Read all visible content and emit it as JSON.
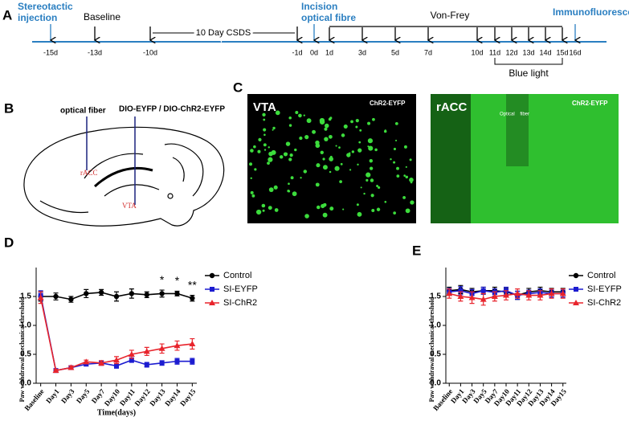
{
  "panels": {
    "a": "A",
    "b": "B",
    "c": "C",
    "d": "D",
    "e": "E"
  },
  "timeline": {
    "stereotactic": [
      "Stereotactic",
      "injection"
    ],
    "baseline": "Baseline",
    "csds": "10 Day CSDS",
    "incision": [
      "Incision",
      "optical fibre"
    ],
    "von_frey": "Von-Frey",
    "immuno": "Immunofluorescence",
    "blue_light": "Blue light",
    "days": [
      "-15d",
      "-13d",
      "-10d",
      "-1d",
      "0d",
      "1d",
      "3d",
      "5d",
      "7d",
      "10d",
      "11d",
      "12d",
      "13d",
      "14d",
      "15d",
      "16d"
    ]
  },
  "diagram": {
    "fiber": "optical fiber",
    "virus": "DIO-EYFP / DIO-ChR2-EYFP",
    "racc": "rACC",
    "vta": "VTA"
  },
  "micrographs": {
    "left": {
      "region": "VTA",
      "label": "ChR2-EYFP"
    },
    "right": {
      "region": "rACC",
      "label": "ChR2-EYFP",
      "fiber": "Optical    fiber"
    }
  },
  "chart_data": [
    {
      "type": "line",
      "ylabel": "Paw withdrawal mechanical threshold",
      "xlabel": "Time(days)",
      "categories": [
        "Baseline",
        "Day1",
        "Day3",
        "Day5",
        "Day7",
        "Day10",
        "Day11",
        "Day12",
        "Day13",
        "Day14",
        "Day15"
      ],
      "series": [
        {
          "name": "Control",
          "color": "#000000",
          "marker": "circle",
          "values": [
            1.5,
            1.5,
            1.45,
            1.55,
            1.57,
            1.5,
            1.55,
            1.53,
            1.55,
            1.55,
            1.47
          ],
          "errors": [
            0.08,
            0.06,
            0.05,
            0.07,
            0.05,
            0.08,
            0.08,
            0.05,
            0.06,
            0.04,
            0.05
          ]
        },
        {
          "name": "SI-EYFP",
          "color": "#1c1cd0",
          "marker": "square",
          "values": [
            1.52,
            0.22,
            0.27,
            0.33,
            0.35,
            0.3,
            0.4,
            0.32,
            0.35,
            0.38,
            0.38
          ],
          "errors": [
            0.08,
            0.02,
            0.03,
            0.03,
            0.04,
            0.04,
            0.04,
            0.04,
            0.04,
            0.05,
            0.05
          ]
        },
        {
          "name": "SI-ChR2",
          "color": "#e8242c",
          "marker": "triangle",
          "values": [
            1.48,
            0.22,
            0.27,
            0.37,
            0.35,
            0.4,
            0.5,
            0.55,
            0.6,
            0.65,
            0.68
          ],
          "errors": [
            0.1,
            0.02,
            0.03,
            0.03,
            0.04,
            0.06,
            0.07,
            0.07,
            0.08,
            0.08,
            0.09
          ]
        }
      ],
      "ylim": [
        0,
        2
      ],
      "yticks": [
        {
          "value": 0,
          "label": "0.0"
        },
        0.5,
        {
          "value": 1,
          "label": "1.0"
        },
        1.5
      ],
      "legend": "right",
      "annotations": [
        "*",
        "*",
        "**"
      ]
    },
    {
      "type": "line",
      "ylabel": "Paw withdrawal mechanical threshold",
      "categories": [
        "Baseline",
        "Day1",
        "Day3",
        "Day5",
        "Day7",
        "Day10",
        "Day11",
        "Day12",
        "Day13",
        "Day14",
        "Day15"
      ],
      "series": [
        {
          "name": "Control",
          "color": "#000000",
          "marker": "circle",
          "values": [
            1.6,
            1.62,
            1.58,
            1.6,
            1.6,
            1.58,
            1.52,
            1.58,
            1.6,
            1.58,
            1.58
          ],
          "errors": [
            0.06,
            0.07,
            0.06,
            0.06,
            0.06,
            0.07,
            0.07,
            0.06,
            0.06,
            0.06,
            0.06
          ]
        },
        {
          "name": "SI-EYFP",
          "color": "#1c1cd0",
          "marker": "square",
          "values": [
            1.58,
            1.6,
            1.55,
            1.6,
            1.57,
            1.6,
            1.52,
            1.55,
            1.57,
            1.55,
            1.55
          ],
          "errors": [
            0.06,
            0.07,
            0.07,
            0.06,
            0.06,
            0.06,
            0.07,
            0.06,
            0.06,
            0.06,
            0.06
          ]
        },
        {
          "name": "SI-ChR2",
          "color": "#e8242c",
          "marker": "triangle",
          "values": [
            1.55,
            1.5,
            1.48,
            1.45,
            1.5,
            1.52,
            1.55,
            1.52,
            1.52,
            1.55,
            1.55
          ],
          "errors": [
            0.08,
            0.08,
            0.1,
            0.1,
            0.08,
            0.08,
            0.08,
            0.08,
            0.08,
            0.08,
            0.08
          ]
        }
      ],
      "ylim": [
        0,
        2
      ],
      "yticks": [
        {
          "value": 0,
          "label": "0.0"
        },
        0.5,
        {
          "value": 1,
          "label": "1.0"
        },
        1.5
      ],
      "legend": "right"
    }
  ]
}
